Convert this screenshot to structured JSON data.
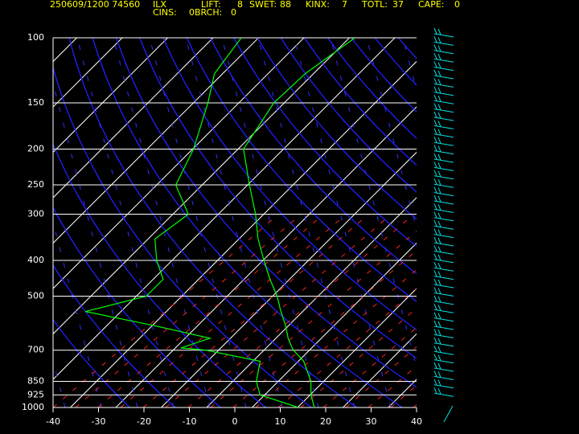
{
  "chart_data": {
    "type": "line",
    "header": {
      "stamp": "250609/1200 74560",
      "station": "ILX",
      "indices": [
        {
          "label": "LIFT:",
          "value": "8"
        },
        {
          "label": "SWET:",
          "value": "88"
        },
        {
          "label": "KINX:",
          "value": "7"
        },
        {
          "label": "TOTL:",
          "value": "37"
        },
        {
          "label": "CAPE:",
          "value": "0"
        },
        {
          "label": "CINS:",
          "value": "0"
        },
        {
          "label": "BRCH:",
          "value": "0"
        }
      ]
    },
    "x": [
      1000,
      925,
      850,
      750,
      700,
      690,
      650,
      600,
      550,
      500,
      450,
      400,
      350,
      300,
      250,
      200,
      150,
      125,
      100
    ],
    "series": [
      {
        "color": "#00ff00",
        "values": [
          17.5,
          14,
          11,
          5,
          0.3,
          -0.5,
          -3.5,
          -6.9,
          -11,
          -15.2,
          -20.5,
          -26,
          -32,
          -38,
          -45.8,
          -55,
          -58.5,
          -58,
          -55
        ]
      },
      {
        "color": "#00ff00",
        "values": [
          14,
          2.8,
          -1,
          -4.6,
          -19,
          -25,
          -20.7,
          -36,
          -54,
          -44,
          -44,
          -49.6,
          -54.7,
          -52.8,
          -62,
          -66,
          -73,
          -78,
          -80
        ]
      }
    ],
    "xlim": [
      -40,
      40
    ],
    "xticks": [
      -40,
      -30,
      -20,
      -10,
      0,
      10,
      20,
      30,
      40
    ],
    "ylim": [
      1000,
      100
    ],
    "yticks": [
      100,
      150,
      200,
      250,
      300,
      400,
      500,
      700,
      850,
      925,
      1000
    ],
    "log_y": true
  }
}
